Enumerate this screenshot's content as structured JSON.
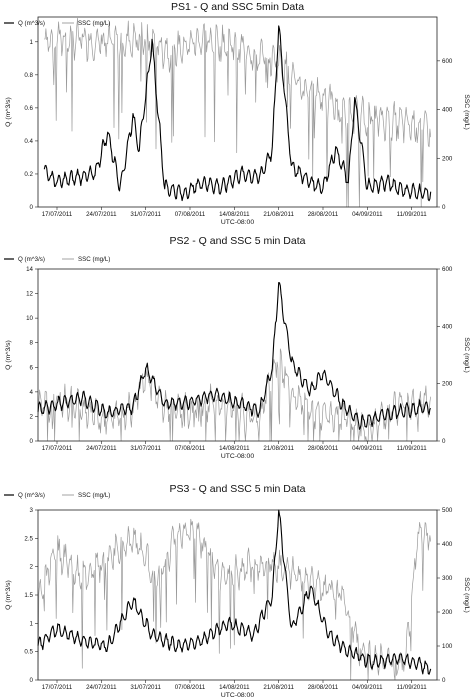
{
  "chart_data": [
    {
      "type": "line",
      "title": "PS1 - Q and SSC 5min Data",
      "xlabel": "UTC-08:00",
      "ylabel_left": "Q (m^3/s)",
      "ylabel_right": "SSC (mg/L)",
      "x_tick_labels": [
        "17/07/2011",
        "24/07/2011",
        "31/07/2011",
        "07/08/2011",
        "14/08/2011",
        "21/08/2011",
        "28/08/2011",
        "04/09/2011",
        "11/09/2011"
      ],
      "y_left_ticks": [
        "0",
        "0.2",
        "0.4",
        "0.6",
        "0.8",
        "1"
      ],
      "y_right_ticks": [
        "0",
        "200",
        "400",
        "600"
      ],
      "ylim_left": [
        0,
        1.15
      ],
      "ylim_right": [
        0,
        780
      ],
      "xlim": [
        "2011-07-14",
        "2011-09-15"
      ],
      "grid": false,
      "legend_position": "top-left",
      "series": [
        {
          "name": "Q (m^3/s)",
          "axis": "left",
          "color": "#000000",
          "x": [
            "2011-07-15",
            "2011-07-17",
            "2011-07-20",
            "2011-07-23",
            "2011-07-25",
            "2011-07-27",
            "2011-07-29",
            "2011-07-30",
            "2011-08-01",
            "2011-08-03",
            "2011-08-06",
            "2011-08-09",
            "2011-08-12",
            "2011-08-15",
            "2011-08-18",
            "2011-08-20",
            "2011-08-21",
            "2011-08-23",
            "2011-08-26",
            "2011-08-28",
            "2011-08-30",
            "2011-09-01",
            "2011-09-02",
            "2011-09-04",
            "2011-09-07",
            "2011-09-10",
            "2011-09-14"
          ],
          "y": [
            0.22,
            0.15,
            0.18,
            0.2,
            0.45,
            0.12,
            0.55,
            0.35,
            1.0,
            0.12,
            0.08,
            0.15,
            0.12,
            0.2,
            0.18,
            0.35,
            1.1,
            0.25,
            0.15,
            0.12,
            0.35,
            0.15,
            0.65,
            0.12,
            0.15,
            0.1,
            0.08
          ]
        },
        {
          "name": "SSC (mg/L)",
          "axis": "right",
          "color": "#999999",
          "x": [
            "2011-07-15",
            "2011-07-20",
            "2011-07-25",
            "2011-07-30",
            "2011-08-04",
            "2011-08-09",
            "2011-08-14",
            "2011-08-18",
            "2011-08-21",
            "2011-08-24",
            "2011-08-28",
            "2011-09-01",
            "2011-09-05",
            "2011-09-10",
            "2011-09-14"
          ],
          "y": [
            690,
            690,
            670,
            690,
            640,
            690,
            660,
            620,
            600,
            500,
            450,
            380,
            360,
            340,
            320
          ]
        }
      ]
    },
    {
      "type": "line",
      "title": "PS2 - Q and SSC 5 min Data",
      "xlabel": "UTC-08:00",
      "ylabel_left": "Q (m^3/s)",
      "ylabel_right": "SSC (mg/L)",
      "x_tick_labels": [
        "17/07/2011",
        "24/07/2011",
        "31/07/2011",
        "07/08/2011",
        "14/08/2011",
        "21/08/2011",
        "28/08/2011",
        "04/09/2011",
        "11/09/2011"
      ],
      "y_left_ticks": [
        "0",
        "2",
        "4",
        "6",
        "8",
        "10",
        "12",
        "14"
      ],
      "y_right_ticks": [
        "0",
        "200",
        "400",
        "600"
      ],
      "ylim_left": [
        0,
        14
      ],
      "ylim_right": [
        0,
        600
      ],
      "xlim": [
        "2011-07-14",
        "2011-09-15"
      ],
      "grid": false,
      "legend_position": "top-left",
      "series": [
        {
          "name": "Q (m^3/s)",
          "axis": "left",
          "color": "#000000",
          "x": [
            "2011-07-14",
            "2011-07-17",
            "2011-07-21",
            "2011-07-25",
            "2011-07-29",
            "2011-07-31",
            "2011-08-03",
            "2011-08-07",
            "2011-08-11",
            "2011-08-15",
            "2011-08-18",
            "2011-08-20",
            "2011-08-21",
            "2011-08-23",
            "2011-08-26",
            "2011-08-28",
            "2011-08-31",
            "2011-09-03",
            "2011-09-06",
            "2011-09-10",
            "2011-09-14"
          ],
          "y": [
            2.5,
            3.0,
            3.5,
            2.2,
            2.8,
            6.0,
            3.0,
            3.2,
            3.8,
            3.0,
            2.5,
            6.0,
            12.9,
            6.5,
            4.0,
            5.5,
            3.0,
            1.5,
            2.0,
            2.5,
            2.8
          ]
        },
        {
          "name": "SSC (mg/L)",
          "axis": "right",
          "color": "#999999",
          "x": [
            "2011-07-14",
            "2011-07-17",
            "2011-07-21",
            "2011-07-25",
            "2011-07-29",
            "2011-07-31",
            "2011-08-03",
            "2011-08-07",
            "2011-08-11",
            "2011-08-15",
            "2011-08-18",
            "2011-08-21",
            "2011-08-23",
            "2011-08-26",
            "2011-08-31",
            "2011-09-04",
            "2011-09-08",
            "2011-09-14"
          ],
          "y": [
            110,
            140,
            120,
            70,
            120,
            230,
            120,
            100,
            140,
            100,
            80,
            300,
            160,
            110,
            80,
            40,
            120,
            140
          ]
        }
      ]
    },
    {
      "type": "line",
      "title": "PS3 - Q and SSC 5 min Data",
      "xlabel": "UTC-08:00",
      "ylabel_left": "Q (m^3/s)",
      "ylabel_right": "SSC (mg/L)",
      "x_tick_labels": [
        "17/07/2011",
        "24/07/2011",
        "31/07/2011",
        "07/08/2011",
        "14/08/2011",
        "21/08/2011",
        "28/08/2011",
        "04/09/2011",
        "11/09/2011"
      ],
      "y_left_ticks": [
        "0",
        "0.5",
        "1",
        "1.5",
        "2",
        "2.5",
        "3"
      ],
      "y_right_ticks": [
        "0",
        "100",
        "200",
        "300",
        "400",
        "500"
      ],
      "ylim_left": [
        0,
        3
      ],
      "ylim_right": [
        0,
        500
      ],
      "xlim": [
        "2011-07-14",
        "2011-09-15"
      ],
      "grid": false,
      "legend_position": "top-left",
      "series": [
        {
          "name": "Q (m^3/s)",
          "axis": "left",
          "color": "#000000",
          "x": [
            "2011-07-14",
            "2011-07-17",
            "2011-07-21",
            "2011-07-25",
            "2011-07-29",
            "2011-08-01",
            "2011-08-05",
            "2011-08-09",
            "2011-08-13",
            "2011-08-17",
            "2011-08-20",
            "2011-08-21",
            "2011-08-23",
            "2011-08-26",
            "2011-08-29",
            "2011-09-01",
            "2011-09-05",
            "2011-09-09",
            "2011-09-14"
          ],
          "y": [
            0.6,
            0.9,
            0.7,
            0.6,
            1.4,
            0.8,
            0.6,
            0.7,
            1.0,
            0.8,
            1.5,
            3.0,
            0.9,
            1.6,
            0.8,
            0.5,
            0.3,
            0.4,
            0.2
          ]
        },
        {
          "name": "SSC (mg/L)",
          "axis": "right",
          "color": "#999999",
          "x": [
            "2011-07-14",
            "2011-07-17",
            "2011-07-21",
            "2011-07-25",
            "2011-07-29",
            "2011-08-02",
            "2011-08-05",
            "2011-08-08",
            "2011-08-12",
            "2011-08-16",
            "2011-08-20",
            "2011-08-24",
            "2011-08-27",
            "2011-08-31",
            "2011-09-03",
            "2011-09-07",
            "2011-09-10",
            "2011-09-12",
            "2011-09-14"
          ],
          "y": [
            250,
            380,
            300,
            350,
            420,
            300,
            430,
            430,
            300,
            330,
            350,
            300,
            280,
            250,
            80,
            60,
            50,
            430,
            430
          ]
        }
      ]
    }
  ]
}
